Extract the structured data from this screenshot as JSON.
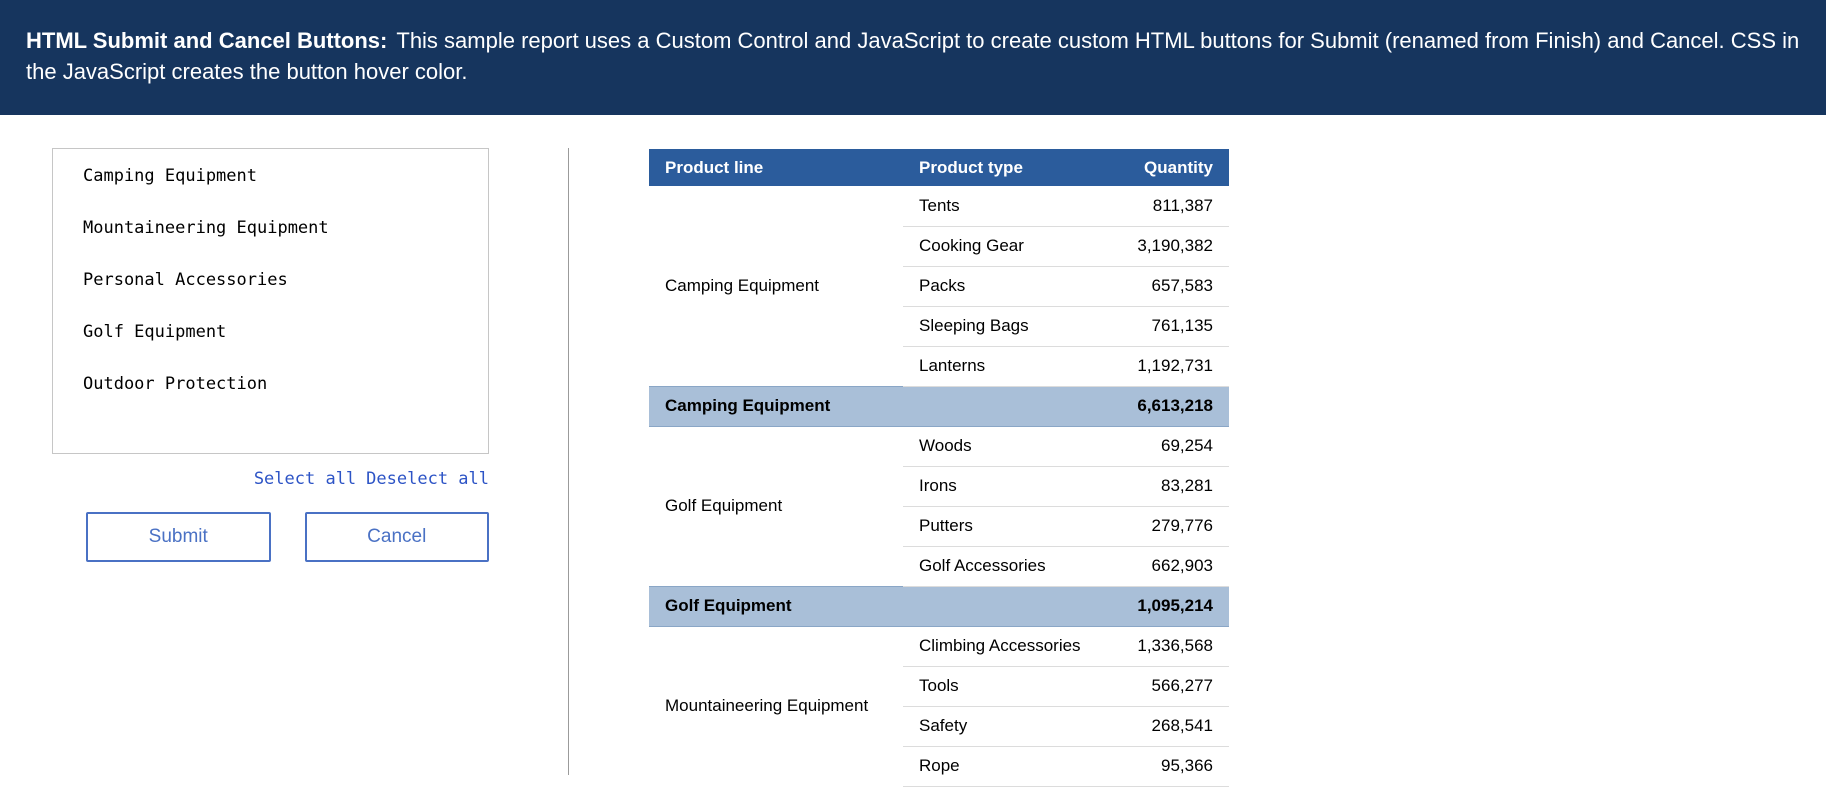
{
  "banner": {
    "title": "HTML Submit and Cancel Buttons:",
    "description": "This sample report uses a Custom Control and JavaScript to create custom HTML buttons for Submit (renamed from Finish) and Cancel. CSS in the JavaScript creates the button hover color."
  },
  "prompt": {
    "options": [
      "Camping Equipment",
      "Mountaineering Equipment",
      "Personal Accessories",
      "Golf Equipment",
      "Outdoor Protection"
    ],
    "links": {
      "select_all": "Select all",
      "deselect_all": "Deselect all"
    },
    "buttons": {
      "submit": "Submit",
      "cancel": "Cancel"
    }
  },
  "report_table": {
    "headers": {
      "product_line": "Product line",
      "product_type": "Product type",
      "quantity": "Quantity"
    },
    "groups": [
      {
        "product_line": "Camping Equipment",
        "rows": [
          {
            "product_type": "Tents",
            "quantity": "811,387"
          },
          {
            "product_type": "Cooking Gear",
            "quantity": "3,190,382"
          },
          {
            "product_type": "Packs",
            "quantity": "657,583"
          },
          {
            "product_type": "Sleeping Bags",
            "quantity": "761,135"
          },
          {
            "product_type": "Lanterns",
            "quantity": "1,192,731"
          }
        ],
        "summary": {
          "label": "Camping Equipment",
          "quantity": "6,613,218"
        }
      },
      {
        "product_line": "Golf Equipment",
        "rows": [
          {
            "product_type": "Woods",
            "quantity": "69,254"
          },
          {
            "product_type": "Irons",
            "quantity": "83,281"
          },
          {
            "product_type": "Putters",
            "quantity": "279,776"
          },
          {
            "product_type": "Golf Accessories",
            "quantity": "662,903"
          }
        ],
        "summary": {
          "label": "Golf Equipment",
          "quantity": "1,095,214"
        }
      },
      {
        "product_line": "Mountaineering Equipment",
        "rows": [
          {
            "product_type": "Climbing Accessories",
            "quantity": "1,336,568"
          },
          {
            "product_type": "Tools",
            "quantity": "566,277"
          },
          {
            "product_type": "Safety",
            "quantity": "268,541"
          },
          {
            "product_type": "Rope",
            "quantity": "95,366"
          }
        ]
      }
    ]
  },
  "colors": {
    "banner_bg": "#16355e",
    "table_header_bg": "#2b5c9c",
    "summary_row_bg": "#a9bfd8",
    "link_blue": "#2d54c6",
    "button_blue": "#4a71c4"
  }
}
